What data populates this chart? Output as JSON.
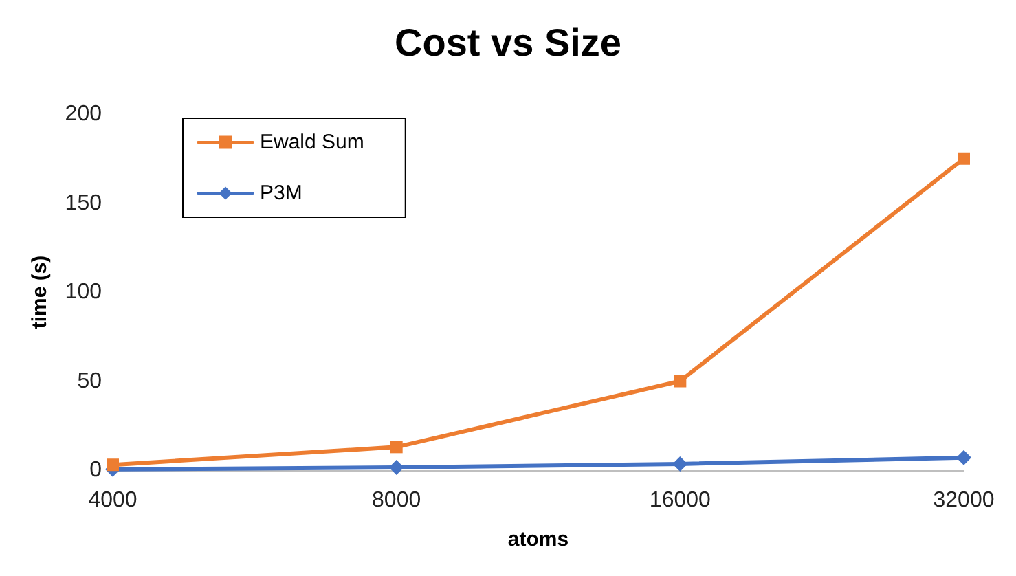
{
  "chart_data": {
    "type": "line",
    "title": "Cost vs Size",
    "xlabel": "atoms",
    "ylabel": "time (s)",
    "categories": [
      "4000",
      "8000",
      "16000",
      "32000"
    ],
    "series": [
      {
        "name": "Ewald Sum",
        "color": "#ed7d31",
        "marker": "square",
        "values": [
          3,
          13,
          50,
          175
        ]
      },
      {
        "name": "P3M",
        "color": "#4472c4",
        "marker": "diamond",
        "values": [
          0.5,
          1.5,
          3.5,
          7
        ]
      }
    ],
    "ylim": [
      0,
      200
    ],
    "yticks": [
      0,
      50,
      100,
      150,
      200
    ],
    "grid": false,
    "legend": "top left",
    "line_style": "solid"
  }
}
